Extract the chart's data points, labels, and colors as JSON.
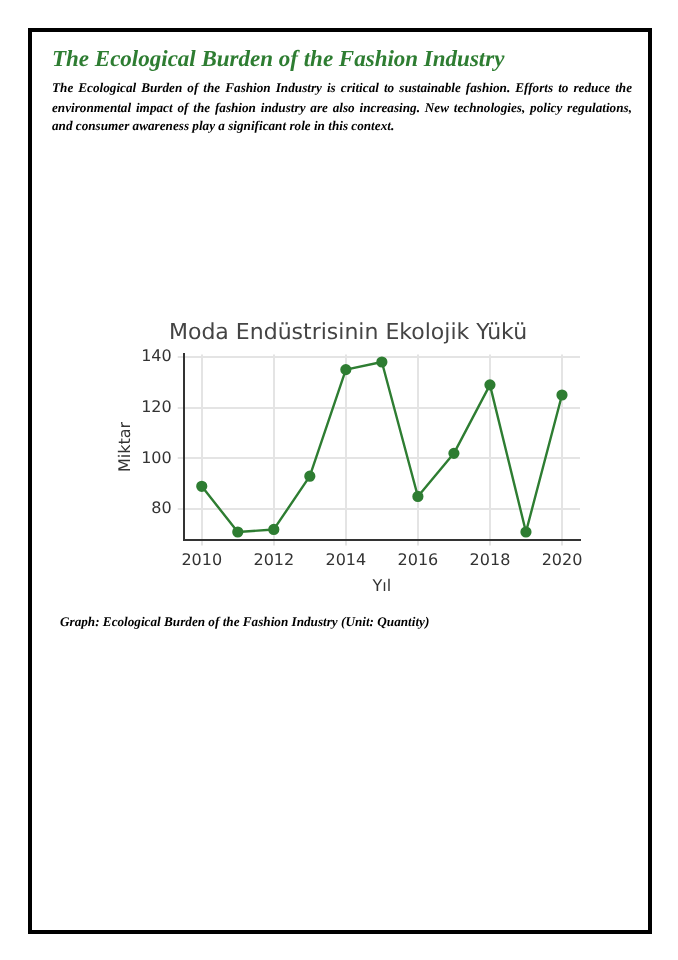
{
  "chart_data": {
    "type": "line",
    "title": "Moda Endüstrisinin Ekolojik Yükü",
    "xlabel": "Yıl",
    "ylabel": "Miktar",
    "x": [
      2010,
      2011,
      2012,
      2013,
      2014,
      2015,
      2016,
      2017,
      2018,
      2019,
      2020
    ],
    "series": [
      {
        "color": "#2e7d32",
        "values": [
          89,
          71,
          72,
          93,
          135,
          138,
          85,
          102,
          129,
          71,
          125
        ]
      }
    ],
    "xlim": [
      2009.5,
      2020.5
    ],
    "xticks": [
      2010,
      2012,
      2014,
      2016,
      2018,
      2020
    ],
    "ylim": [
      68,
      141
    ],
    "yticks": [
      80,
      100,
      120,
      140
    ],
    "grid": true,
    "legend": false,
    "marker": "circle",
    "line_style": "solid",
    "annotations": [
      "The Ecological Burden of the Fashion Industry",
      "The Ecological Burden of the Fashion Industry is critical to sustainable fashion. Efforts to reduce the environmental impact of the fashion industry are also increasing. New technologies, policy regulations, and consumer awareness play a significant role in this context.",
      "Graph: Ecological Burden of the Fashion Industry (Unit: Quantity)"
    ]
  }
}
